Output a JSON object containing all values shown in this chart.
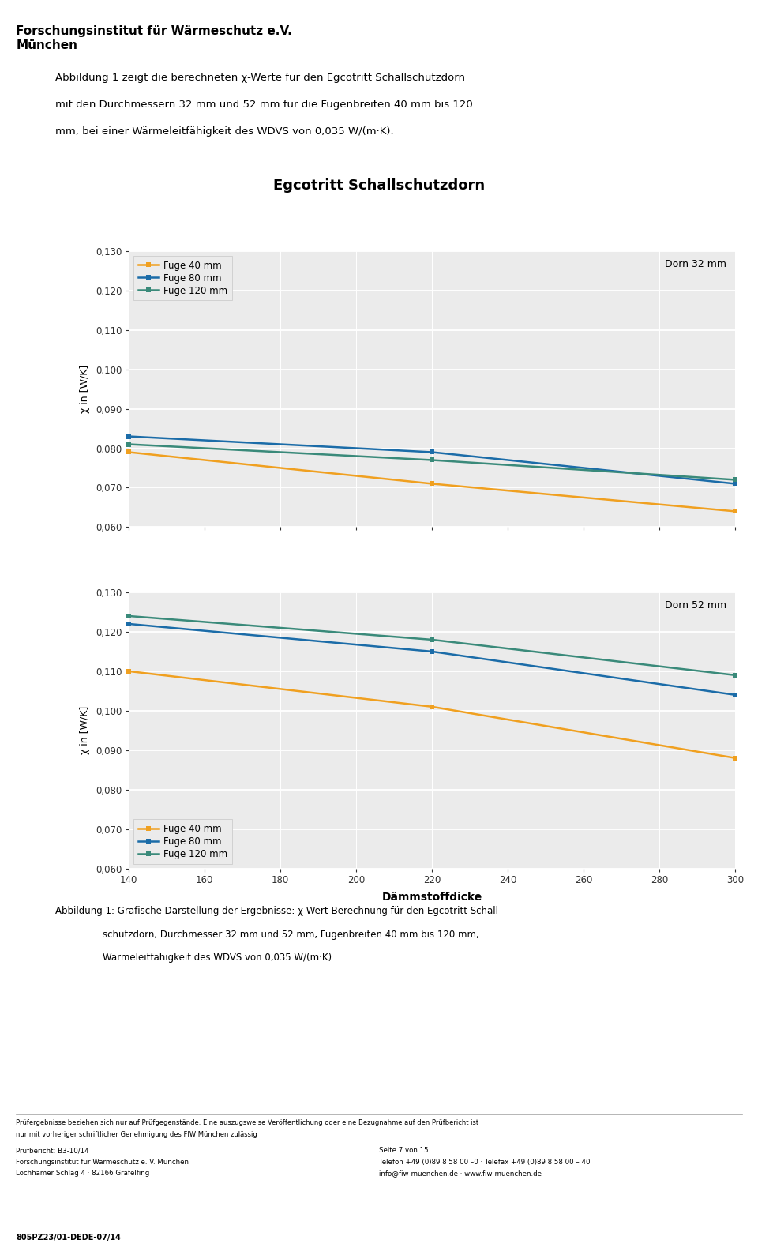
{
  "title": "Egcotritt Schallschutzdorn",
  "header_line1": "Forschungsinstitut für Wärmeschutz e.V.",
  "header_line2": "München",
  "intro_line1": "Abbildung 1 zeigt die berechneten χ-Werte für den Egcotritt Schallschutzdorn",
  "intro_line2": "mit den Durchmessern 32 mm und 52 mm für die Fugenbreiten 40 mm bis 120",
  "intro_line3": "mm, bei einer Wärmeleitfähigkeit des WDVS von 0,035 W/(m·K).",
  "xlabel": "Dämmstoffdicke",
  "ylabel": "χ in [W/K]",
  "x_values": [
    140,
    220,
    300
  ],
  "dorn32_fuge40": [
    0.079,
    0.071,
    0.064
  ],
  "dorn32_fuge80": [
    0.083,
    0.079,
    0.071
  ],
  "dorn32_fuge120": [
    0.081,
    0.077,
    0.072
  ],
  "dorn52_fuge40": [
    0.11,
    0.101,
    0.088
  ],
  "dorn52_fuge80": [
    0.122,
    0.115,
    0.104
  ],
  "dorn52_fuge120": [
    0.124,
    0.118,
    0.109
  ],
  "ylim": [
    0.06,
    0.13
  ],
  "yticks": [
    0.06,
    0.07,
    0.08,
    0.09,
    0.1,
    0.11,
    0.12,
    0.13
  ],
  "xticks": [
    140,
    160,
    180,
    200,
    220,
    240,
    260,
    280,
    300
  ],
  "color_fuge40": "#F0A020",
  "color_fuge80": "#1B6CA8",
  "color_fuge120": "#3A8A7A",
  "label_fuge40": "Fuge 40 mm",
  "label_fuge80": "Fuge 80 mm",
  "label_fuge120": "Fuge 120 mm",
  "label_dorn32": "Dorn 32 mm",
  "label_dorn52": "Dorn 52 mm",
  "caption_line1": "Abbildung 1: Grafische Darstellung der Ergebnisse: χ-Wert-Berechnung für den Egcotritt Schall-",
  "caption_line2": "schutzdorn, Durchmesser 32 mm und 52 mm, Fugenbreiten 40 mm bis 120 mm,",
  "caption_line3": "Wärmeleitfähigkeit des WDVS von 0,035 W/(m·K)",
  "footer_text1": "Prüfergebnisse beziehen sich nur auf Prüfgegenstände. Eine auszugsweise Veröffentlichung oder eine Bezugnahme auf den Prüfbericht ist",
  "footer_text2": "nur mit vorheriger schriftlicher Genehmigung des FIW München zulässig",
  "footer_l1": "Prüfbericht: B3-10/14",
  "footer_l2": "Forschungsinstitut für Wärmeschutz e. V. München",
  "footer_l3": "Lochhamer Schlag 4 · 82166 Gräfelfing",
  "footer_r1": "Seite 7 von 15",
  "footer_r2": "Telefon +49 (0)89 8 58 00 –0 · Telefax +49 (0)89 8 58 00 – 40",
  "footer_r3": "info@fiw-muenchen.de · www.fiw-muenchen.de",
  "footer_bottom": "805PZ23/01-DEDE-07/14",
  "chart_bg": "#EBEBEB"
}
